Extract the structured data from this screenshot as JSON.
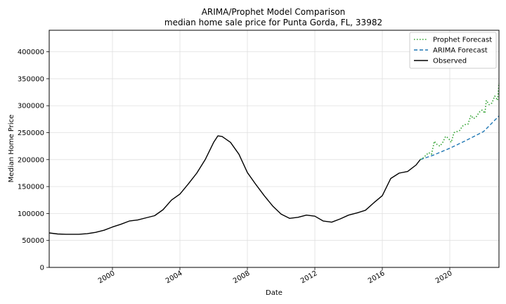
{
  "chart_data": {
    "type": "line",
    "title": "ARIMA/Prophet Model Comparison",
    "subtitle": "median home sale price for Punta Gorda, FL, 33982",
    "xlabel": "Date",
    "ylabel": "Median Home Price",
    "xlim": [
      "1996-04",
      "2022-12"
    ],
    "ylim": [
      0,
      440000
    ],
    "yticks": [
      0,
      50000,
      100000,
      150000,
      200000,
      250000,
      300000,
      350000,
      400000
    ],
    "xticks": [
      "2000",
      "2004",
      "2008",
      "2012",
      "2016",
      "2020"
    ],
    "grid": true,
    "legend_position": "top-right",
    "series": [
      {
        "name": "Prophet Forecast",
        "style": "dotted",
        "color": "#2ca02c",
        "points": [
          [
            "2018-04",
            200000
          ],
          [
            "2018-06",
            203000
          ],
          [
            "2018-08",
            208000
          ],
          [
            "2018-10",
            213000
          ],
          [
            "2018-12",
            210000
          ],
          [
            "2019-02",
            234000
          ],
          [
            "2019-04",
            228000
          ],
          [
            "2019-06",
            225000
          ],
          [
            "2019-08",
            232000
          ],
          [
            "2019-10",
            243000
          ],
          [
            "2019-12",
            240000
          ],
          [
            "2020-02",
            232000
          ],
          [
            "2020-04",
            250000
          ],
          [
            "2020-06",
            252000
          ],
          [
            "2020-08",
            254000
          ],
          [
            "2020-10",
            262000
          ],
          [
            "2020-12",
            265000
          ],
          [
            "2021-02",
            266000
          ],
          [
            "2021-04",
            282000
          ],
          [
            "2021-06",
            276000
          ],
          [
            "2021-08",
            280000
          ],
          [
            "2021-10",
            288000
          ],
          [
            "2021-12",
            292000
          ],
          [
            "2022-02",
            286000
          ],
          [
            "2022-03",
            310000
          ],
          [
            "2022-05",
            302000
          ],
          [
            "2022-07",
            305000
          ],
          [
            "2022-09",
            318000
          ],
          [
            "2022-11",
            310000
          ],
          [
            "2022-12",
            342000
          ]
        ]
      },
      {
        "name": "ARIMA Forecast",
        "style": "dashed",
        "color": "#1f77b4",
        "points": [
          [
            "2018-04",
            200000
          ],
          [
            "2019-01",
            208000
          ],
          [
            "2020-01",
            221000
          ],
          [
            "2021-01",
            236000
          ],
          [
            "2022-01",
            252000
          ],
          [
            "2022-12",
            281000
          ]
        ]
      },
      {
        "name": "Observed",
        "style": "solid",
        "color": "#000000",
        "points": [
          [
            "1996-04",
            64000
          ],
          [
            "1996-10",
            62000
          ],
          [
            "1997-04",
            61500
          ],
          [
            "1998-01",
            61500
          ],
          [
            "1998-07",
            62500
          ],
          [
            "1999-01",
            65000
          ],
          [
            "1999-07",
            69000
          ],
          [
            "2000-01",
            75000
          ],
          [
            "2000-07",
            80000
          ],
          [
            "2001-01",
            86000
          ],
          [
            "2001-07",
            88000
          ],
          [
            "2002-01",
            92000
          ],
          [
            "2002-07",
            96000
          ],
          [
            "2003-01",
            107000
          ],
          [
            "2003-07",
            125000
          ],
          [
            "2004-01",
            136000
          ],
          [
            "2004-07",
            155000
          ],
          [
            "2005-01",
            175000
          ],
          [
            "2005-07",
            200000
          ],
          [
            "2006-01",
            232000
          ],
          [
            "2006-04",
            244000
          ],
          [
            "2006-07",
            243000
          ],
          [
            "2007-01",
            232000
          ],
          [
            "2007-07",
            210000
          ],
          [
            "2008-01",
            176000
          ],
          [
            "2008-07",
            154000
          ],
          [
            "2009-01",
            133000
          ],
          [
            "2009-07",
            114000
          ],
          [
            "2010-01",
            99000
          ],
          [
            "2010-07",
            91000
          ],
          [
            "2011-01",
            93000
          ],
          [
            "2011-07",
            97000
          ],
          [
            "2012-01",
            95000
          ],
          [
            "2012-07",
            86000
          ],
          [
            "2013-01",
            84000
          ],
          [
            "2013-07",
            90000
          ],
          [
            "2014-01",
            97000
          ],
          [
            "2014-07",
            101000
          ],
          [
            "2015-01",
            106000
          ],
          [
            "2015-07",
            120000
          ],
          [
            "2016-01",
            133000
          ],
          [
            "2016-07",
            165000
          ],
          [
            "2017-01",
            175000
          ],
          [
            "2017-07",
            178000
          ],
          [
            "2018-01",
            190000
          ],
          [
            "2018-04",
            200000
          ]
        ]
      }
    ]
  }
}
